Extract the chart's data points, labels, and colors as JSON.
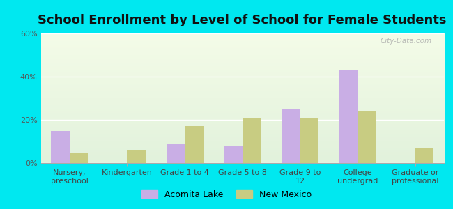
{
  "title": "School Enrollment by Level of School for Female Students",
  "categories": [
    "Nursery,\npreschool",
    "Kindergarten",
    "Grade 1 to 4",
    "Grade 5 to 8",
    "Grade 9 to\n12",
    "College\nundergrad",
    "Graduate or\nprofessional"
  ],
  "acomita_lake": [
    15,
    0,
    9,
    8,
    25,
    43,
    0
  ],
  "new_mexico": [
    5,
    6,
    17,
    21,
    21,
    24,
    7
  ],
  "acomita_color": "#c9aee5",
  "new_mexico_color": "#c8cc82",
  "background_color": "#00e8f0",
  "plot_bg_top": "#e2f2dc",
  "plot_bg_bottom": "#f4fce8",
  "ylim": [
    0,
    60
  ],
  "yticks": [
    0,
    20,
    40,
    60
  ],
  "ytick_labels": [
    "0%",
    "20%",
    "40%",
    "60%"
  ],
  "legend_labels": [
    "Acomita Lake",
    "New Mexico"
  ],
  "title_fontsize": 13,
  "tick_fontsize": 8,
  "legend_fontsize": 9,
  "bar_width": 0.32
}
